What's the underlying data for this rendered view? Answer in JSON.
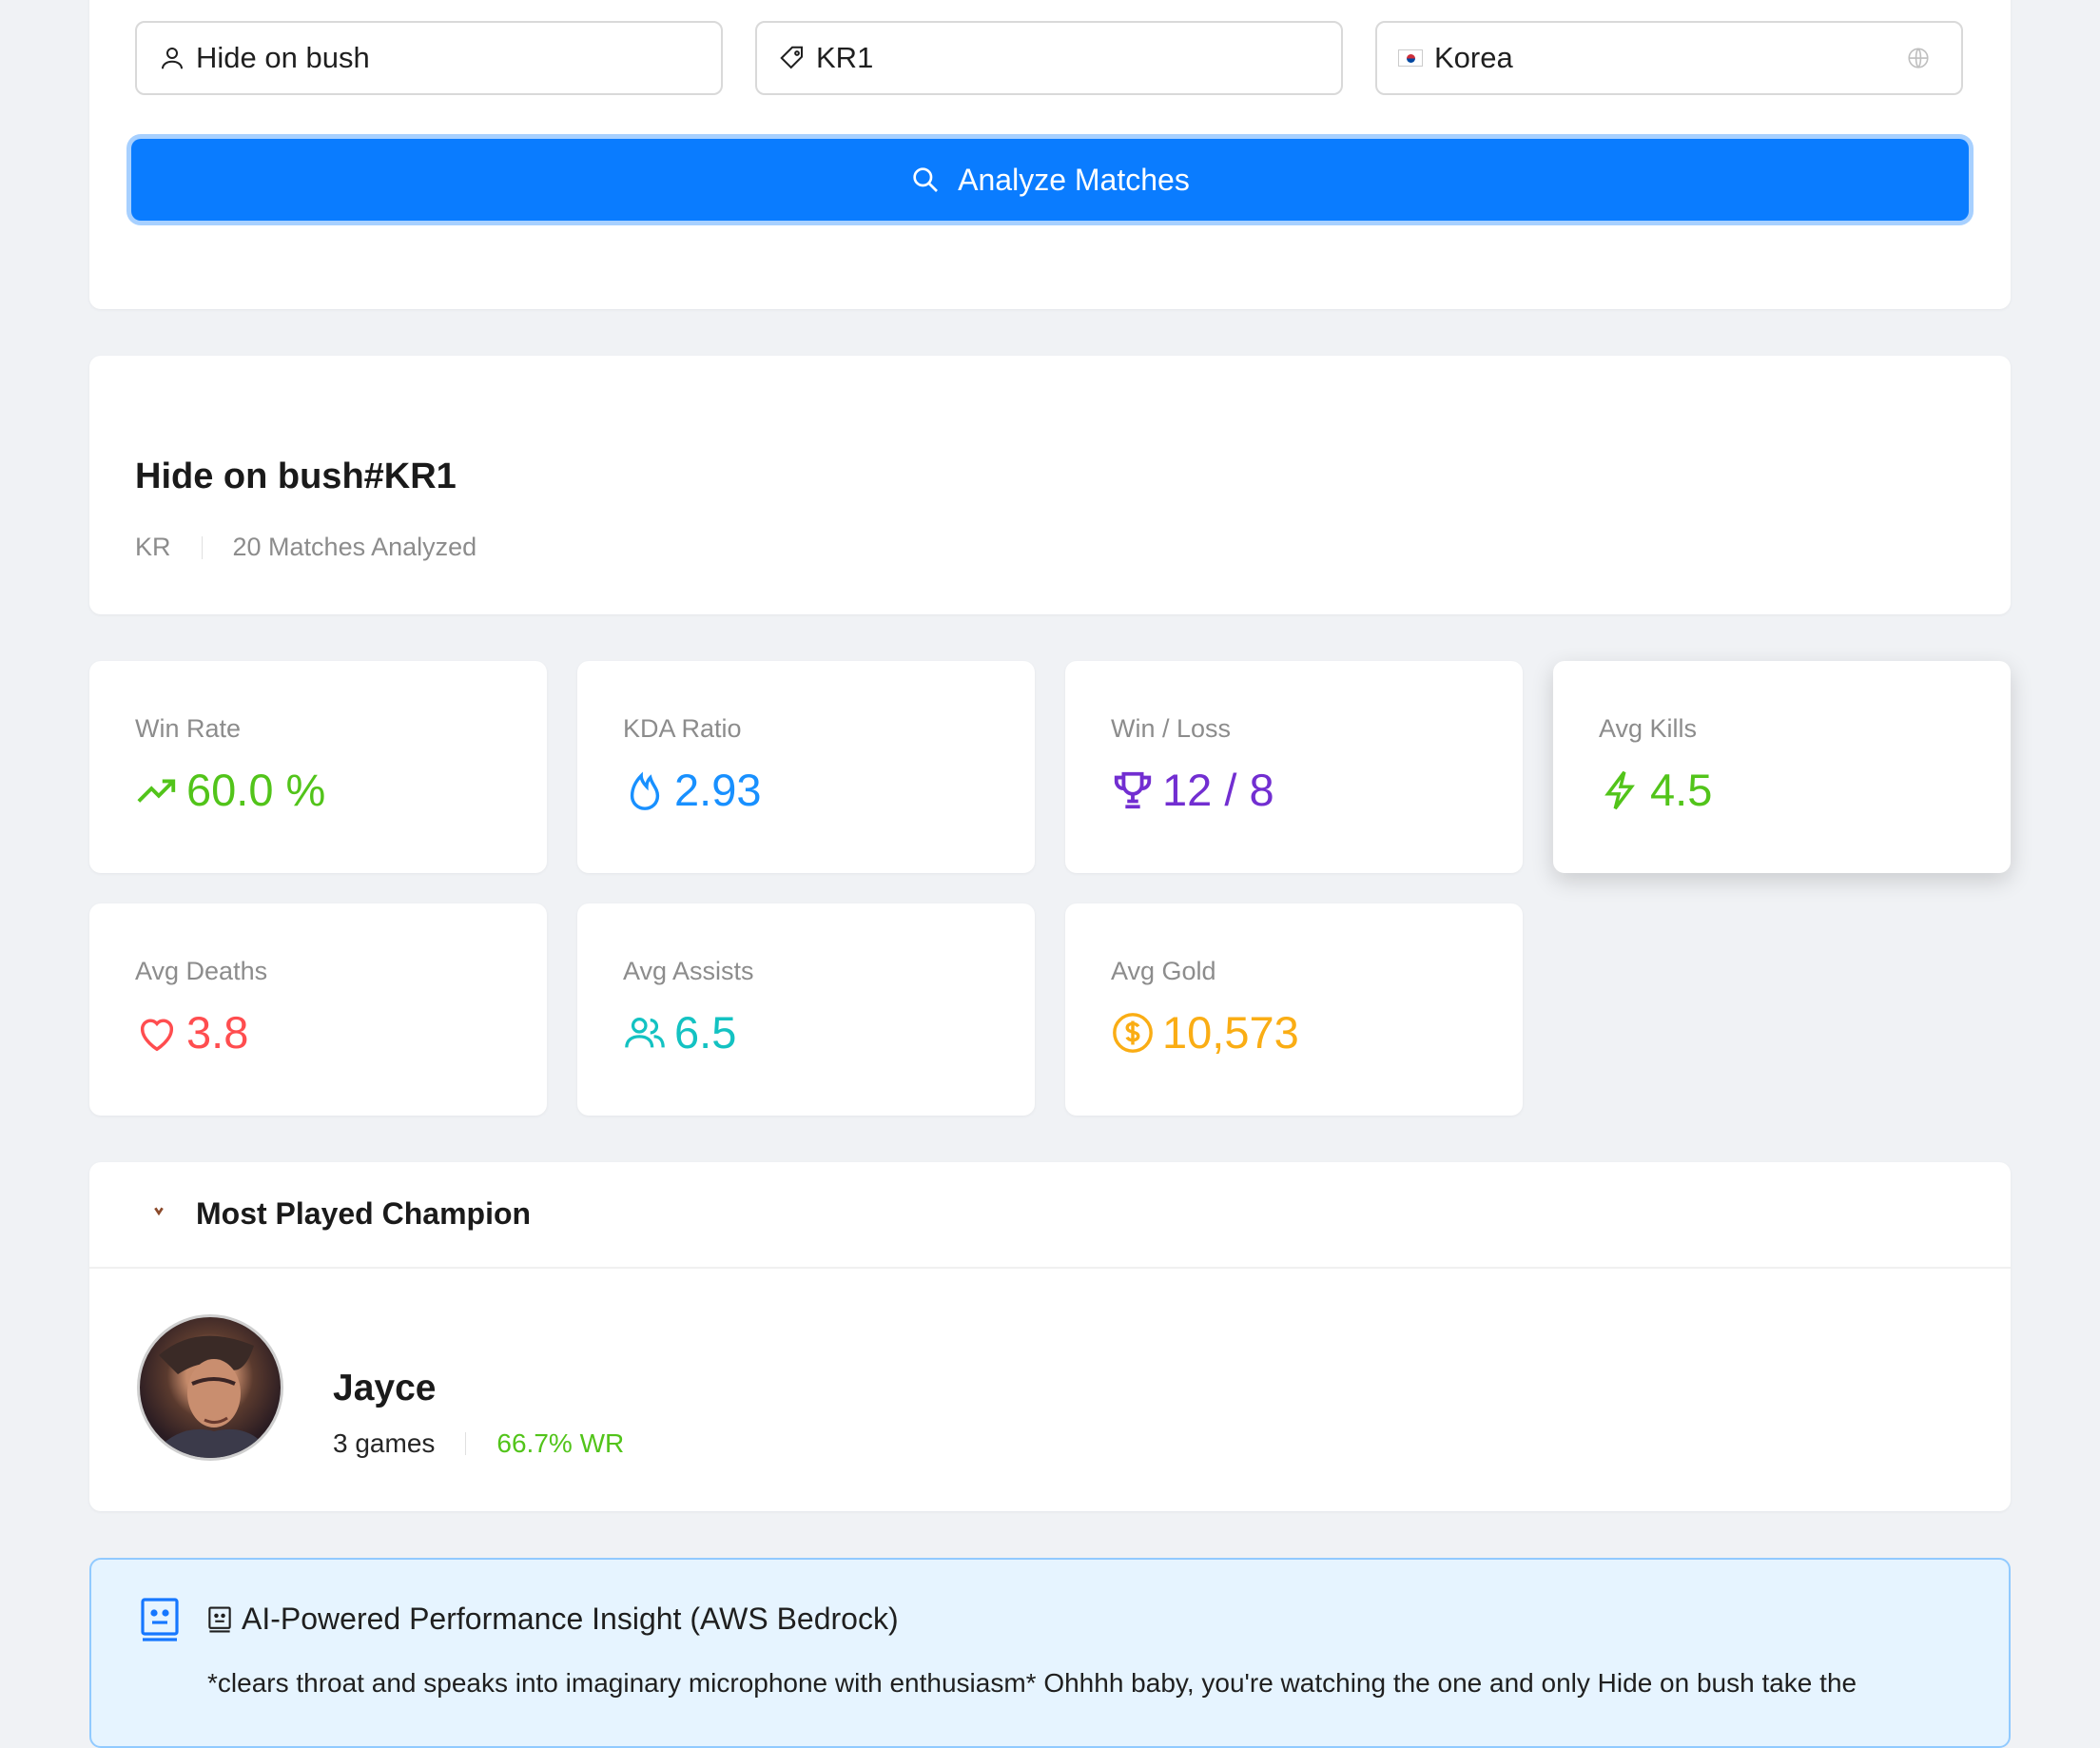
{
  "search": {
    "summoner_name": "Hide on bush",
    "tag": "KR1",
    "region": "Korea",
    "analyze_label": "Analyze Matches"
  },
  "profile": {
    "name": "Hide on bush#KR1",
    "region": "KR",
    "matches": "20 Matches Analyzed"
  },
  "stats": {
    "win_rate": {
      "label": "Win Rate",
      "value": "60.0 %",
      "color": "#52c41a",
      "icon": "trending-up-icon"
    },
    "kda": {
      "label": "KDA Ratio",
      "value": "2.93",
      "color": "#1890ff",
      "icon": "fire-icon"
    },
    "win_loss": {
      "label": "Win / Loss",
      "value": "12 / 8",
      "color": "#722ed1",
      "icon": "trophy-icon"
    },
    "avg_kills": {
      "label": "Avg Kills",
      "value": "4.5",
      "color": "#52c41a",
      "icon": "thunderbolt-icon"
    },
    "avg_deaths": {
      "label": "Avg Deaths",
      "value": "3.8",
      "color": "#ff4d4f",
      "icon": "heart-icon"
    },
    "avg_assists": {
      "label": "Avg Assists",
      "value": "6.5",
      "color": "#13c2c2",
      "icon": "team-icon"
    },
    "avg_gold": {
      "label": "Avg Gold",
      "value": "10,573",
      "color": "#faad14",
      "icon": "dollar-icon"
    }
  },
  "champion": {
    "section_title": "Most Played Champion",
    "name": "Jayce",
    "games": "3 games",
    "win_rate": "66.7% WR"
  },
  "ai_insight": {
    "title": "AI-Powered Performance Insight (AWS Bedrock)",
    "text": "*clears throat and speaks into imaginary microphone with enthusiasm* Ohhhh baby, you're watching the one and only Hide on bush take the"
  },
  "colors": {
    "primary": "#0a7cff",
    "page_bg": "#f0f2f5",
    "insight_bg": "#e6f4ff"
  }
}
